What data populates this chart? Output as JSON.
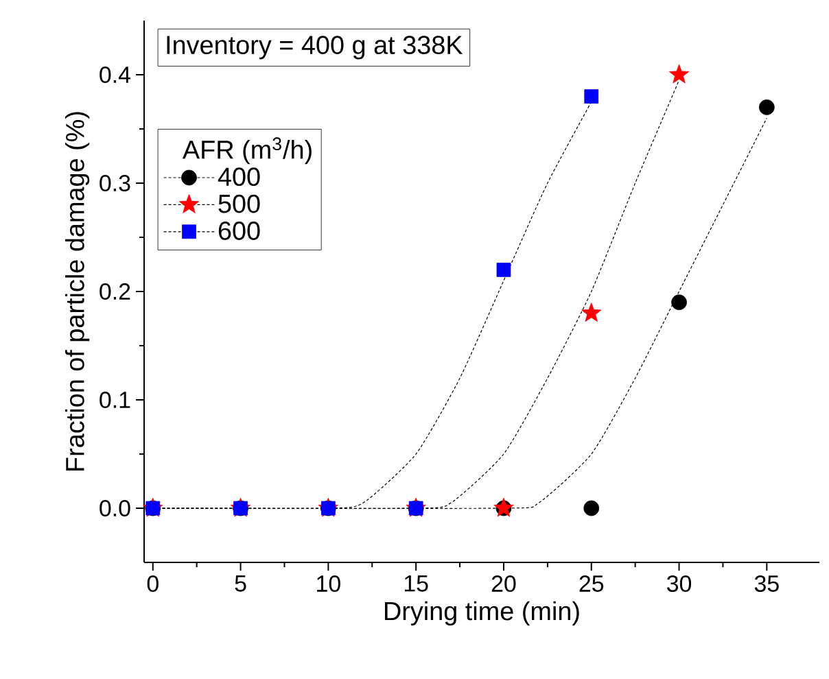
{
  "chart_data": {
    "type": "scatter",
    "xlabel": "Drying time (min)",
    "ylabel": "Fraction of particle damage (%)",
    "legend_title": "AFR (m$^{3}$/h)",
    "annotations": [
      "Inventory = 400 g at 338K"
    ],
    "xlim": [
      -0.5,
      38
    ],
    "ylim": [
      -0.05,
      0.45
    ],
    "xticks": [
      0,
      5,
      10,
      15,
      20,
      25,
      30,
      35
    ],
    "yticks": [
      {
        "value": 0,
        "label": "0.0"
      },
      {
        "value": 0.1,
        "label": "0.1"
      },
      {
        "value": 0.2,
        "label": "0.2"
      },
      {
        "value": 0.3,
        "label": "0.3"
      },
      {
        "value": 0.4,
        "label": "0.4"
      }
    ],
    "legend": "top left",
    "grid": false,
    "series": [
      {
        "type": "line",
        "color": "#000000",
        "marker": "none",
        "line_style": "dotted",
        "x": [
          0,
          10,
          12,
          15,
          17.5,
          20,
          22.5,
          25
        ],
        "values": [
          0,
          0,
          0.005,
          0.05,
          0.12,
          0.21,
          0.3,
          0.375
        ]
      },
      {
        "type": "line",
        "color": "#000000",
        "marker": "none",
        "line_style": "dotted",
        "x": [
          0,
          15,
          17,
          20,
          22.5,
          25,
          27.5,
          30
        ],
        "values": [
          0,
          0,
          0.005,
          0.05,
          0.12,
          0.2,
          0.3,
          0.395
        ]
      },
      {
        "type": "line",
        "color": "#000000",
        "marker": "none",
        "line_style": "dotted",
        "x": [
          0,
          20,
          22,
          25,
          27.5,
          30,
          32.5,
          35
        ],
        "values": [
          0,
          0,
          0.005,
          0.05,
          0.12,
          0.2,
          0.28,
          0.36
        ]
      },
      {
        "name": "400",
        "color": "#000000",
        "marker": "circle",
        "x": [
          0,
          5,
          10,
          15,
          20,
          25,
          30,
          35
        ],
        "values": [
          0,
          0,
          0,
          0,
          0,
          0,
          0.19,
          0.37
        ]
      },
      {
        "name": "500",
        "color": "#ff0000",
        "marker": "star",
        "x": [
          0,
          5,
          10,
          15,
          20,
          25,
          30
        ],
        "values": [
          0,
          0,
          0,
          0,
          0,
          0.18,
          0.4
        ]
      },
      {
        "name": "600",
        "color": "#0000ff",
        "marker": "square",
        "x": [
          0,
          5,
          10,
          15,
          20,
          25
        ],
        "values": [
          0,
          0,
          0,
          0,
          0.22,
          0.38
        ]
      }
    ]
  }
}
